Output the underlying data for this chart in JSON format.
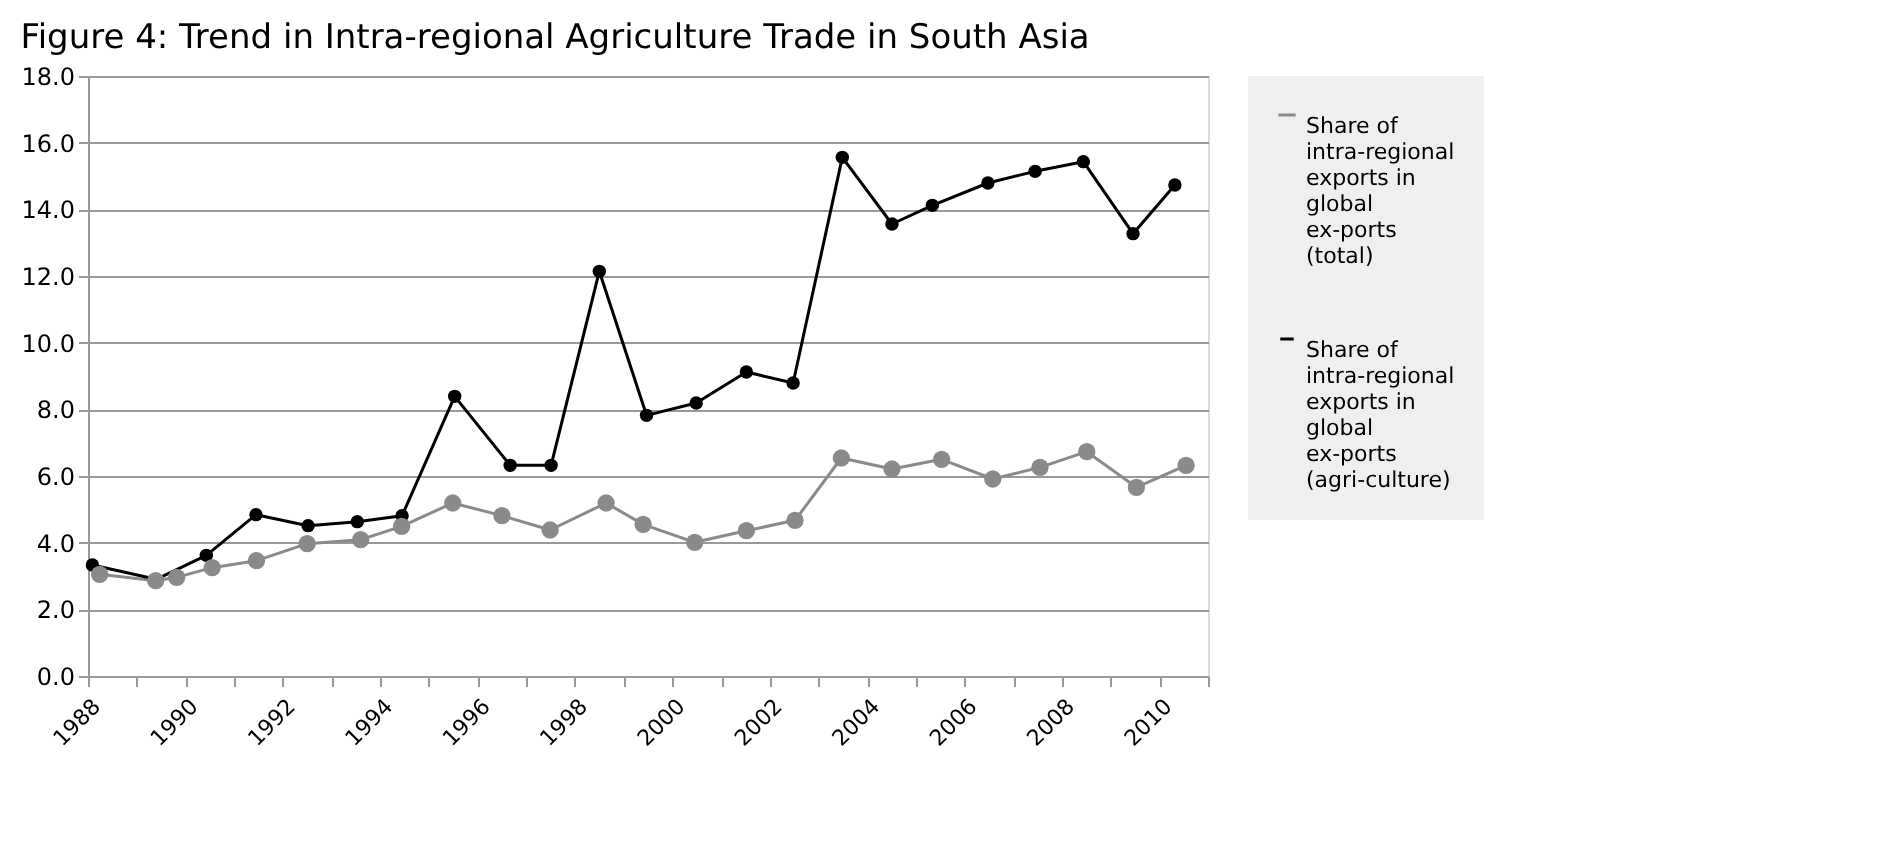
{
  "chart_data": {
    "type": "line",
    "title": "Figure 4: Trend in Intra-regional Agriculture Trade in South Asia",
    "xlim": [
      1988,
      2011
    ],
    "xticks": [
      1988,
      {
        "value": 1989,
        "label": null
      },
      1990,
      {
        "value": 1991,
        "label": null
      },
      1992,
      {
        "value": 1993,
        "label": null
      },
      1994,
      {
        "value": 1995,
        "label": null
      },
      1996,
      {
        "value": 1997,
        "label": null
      },
      1998,
      {
        "value": 1999,
        "label": null
      },
      2000,
      {
        "value": 2001,
        "label": null
      },
      2002,
      {
        "value": 2003,
        "label": null
      },
      2004,
      {
        "value": 2005,
        "label": null
      },
      2006,
      {
        "value": 2007,
        "label": null
      },
      2008,
      {
        "value": 2009,
        "label": null
      },
      2010,
      {
        "value": 2011,
        "label": null
      }
    ],
    "ylim": [
      0,
      18
    ],
    "yticks": [
      {
        "value": 0,
        "label": "0.0"
      },
      {
        "value": 2,
        "label": "2.0"
      },
      {
        "value": 4,
        "label": "4.0"
      },
      {
        "value": 6,
        "label": "6.0"
      },
      {
        "value": 8,
        "label": "8.0"
      },
      {
        "value": 10,
        "label": "10.0"
      },
      {
        "value": 12,
        "label": "12.0"
      },
      {
        "value": 14,
        "label": "14.0"
      },
      {
        "value": 16,
        "label": "16.0"
      },
      {
        "value": 18,
        "label": "18.0"
      }
    ],
    "grid": "y",
    "legend": "right",
    "marker": "circle",
    "line_style": "solid",
    "series": [
      {
        "name": "Share of intra-regional exports in global ex-ports (total)",
        "color": "#8a8a8a",
        "x": [
          1988.24,
          1989.39,
          1989.82,
          1990.55,
          1991.46,
          1992.5,
          1993.6,
          1994.44,
          1995.49,
          1996.5,
          1997.49,
          1998.64,
          1999.4,
          2000.46,
          2001.52,
          2002.52,
          2003.47,
          2004.51,
          2005.53,
          2006.58,
          2007.55,
          2008.51,
          2009.53,
          2010.55
        ],
        "values": [
          3.05,
          2.86,
          2.96,
          3.25,
          3.46,
          3.97,
          4.09,
          4.49,
          5.19,
          4.81,
          4.38,
          5.19,
          4.55,
          4.01,
          4.36,
          4.67,
          6.54,
          6.21,
          6.5,
          5.91,
          6.26,
          6.73,
          5.66,
          6.32
        ]
      },
      {
        "name": "Share of intra-regional exports in global ex-ports (agri-culture)",
        "color": "#000000",
        "x": [
          1988.09,
          1989.4,
          1990.43,
          1991.45,
          1992.52,
          1993.53,
          1994.45,
          1995.53,
          1996.67,
          1997.51,
          1998.5,
          1999.47,
          2000.49,
          2001.52,
          2002.48,
          2003.49,
          2004.51,
          2005.34,
          2006.48,
          2007.45,
          2008.44,
          2009.46,
          2010.32
        ],
        "values": [
          3.33,
          2.9,
          3.62,
          4.84,
          4.51,
          4.63,
          4.81,
          8.39,
          6.32,
          6.32,
          12.14,
          7.82,
          8.19,
          9.12,
          8.79,
          15.56,
          13.56,
          14.12,
          14.79,
          15.14,
          15.43,
          13.27,
          14.73
        ]
      }
    ]
  }
}
